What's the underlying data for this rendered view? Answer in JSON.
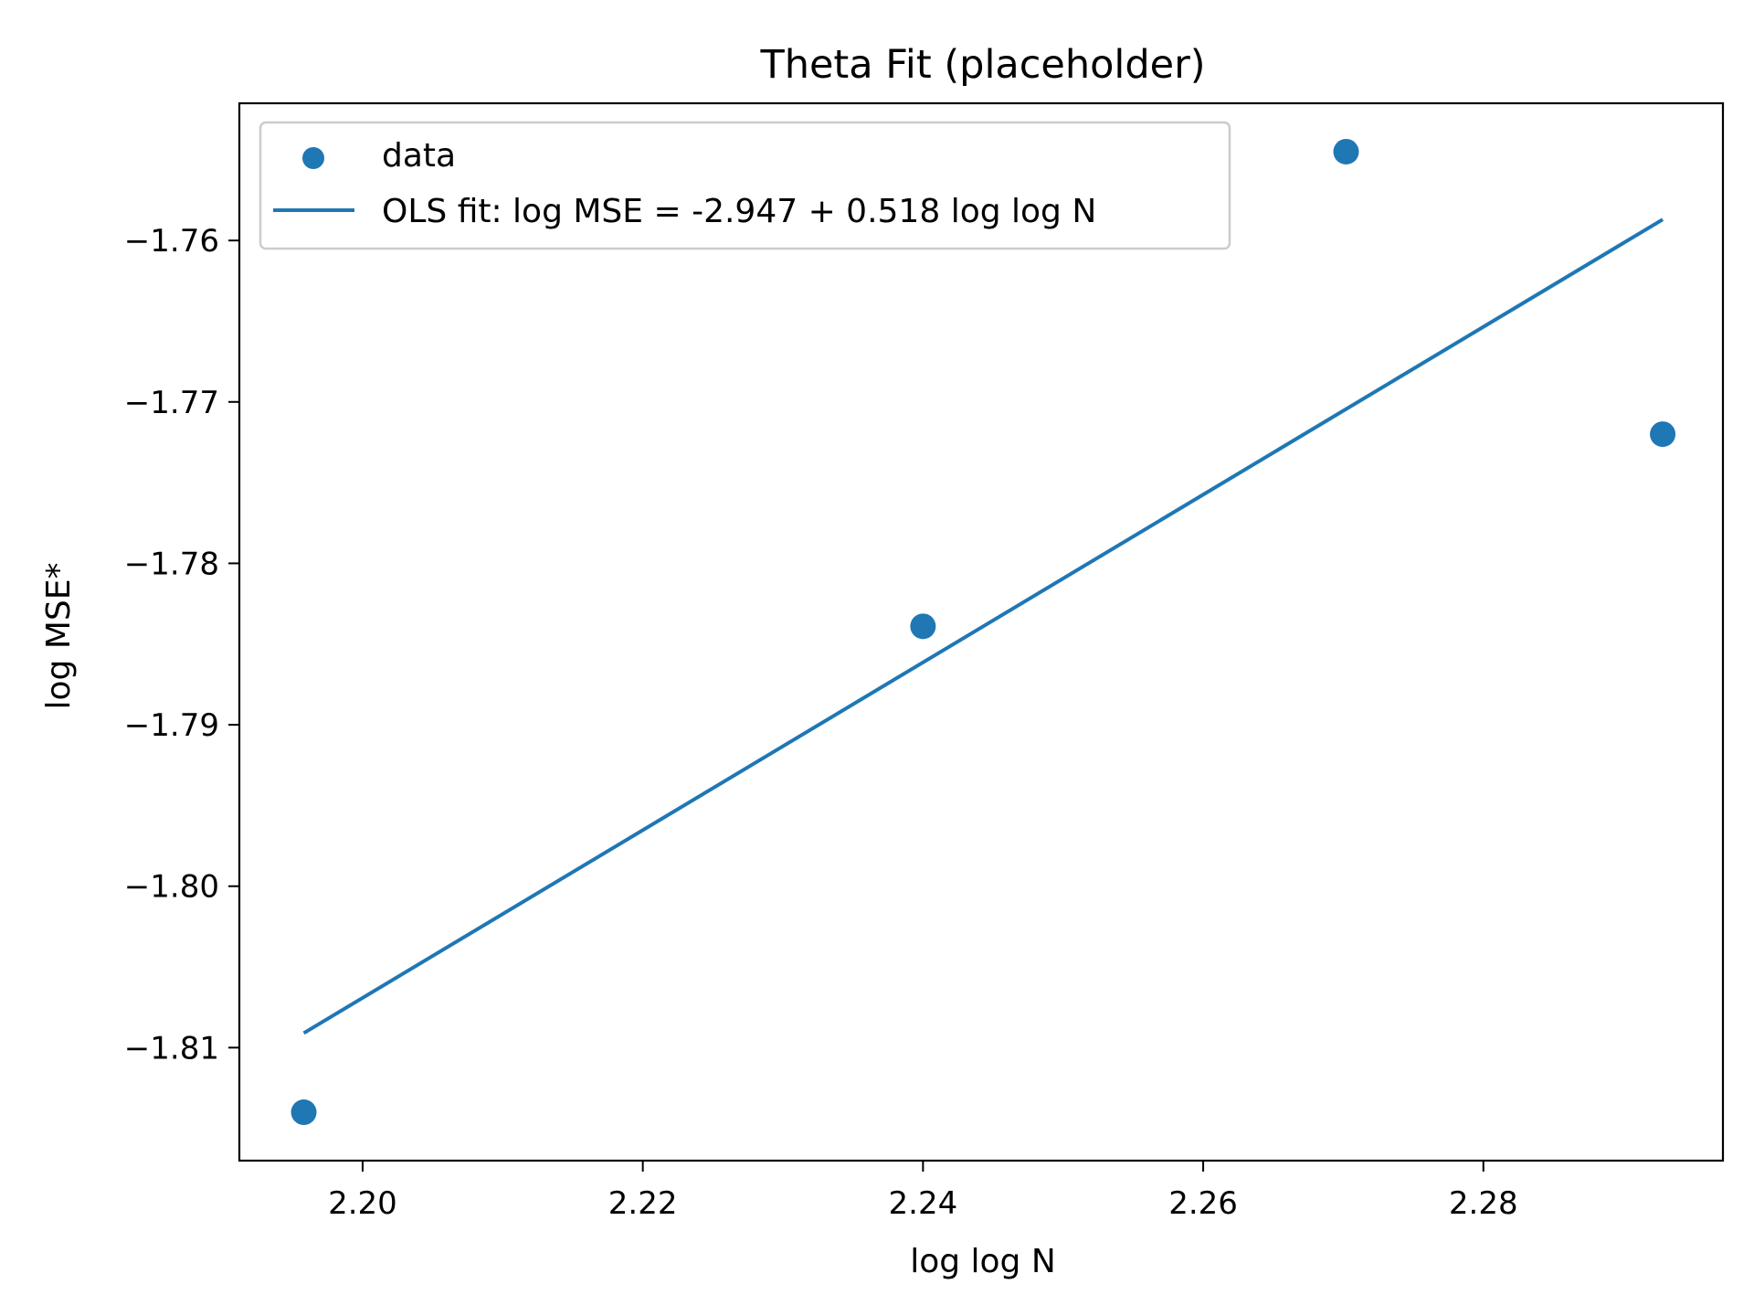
{
  "chart_data": {
    "type": "scatter",
    "title": "Theta Fit (placeholder)",
    "xlabel": "log log N",
    "ylabel": "log MSE*",
    "xlim": [
      2.1912,
      2.2971
    ],
    "ylim": [
      -1.817,
      -1.7515
    ],
    "xticks": [
      2.2,
      2.22,
      2.24,
      2.26,
      2.28
    ],
    "xtick_labels": [
      "2.20",
      "2.22",
      "2.24",
      "2.26",
      "2.28"
    ],
    "yticks": [
      -1.76,
      -1.77,
      -1.78,
      -1.79,
      -1.8,
      -1.81
    ],
    "ytick_labels": [
      "−1.76",
      "−1.77",
      "−1.78",
      "−1.79",
      "−1.80",
      "−1.81"
    ],
    "grid": false,
    "legend_position": "upper-left",
    "series": [
      {
        "name": "data",
        "type": "scatter",
        "color": "#1f77b4",
        "x": [
          2.1958,
          2.24,
          2.2702,
          2.2928
        ],
        "y": [
          -1.814,
          -1.7839,
          -1.7545,
          -1.772
        ]
      },
      {
        "name": "OLS fit: log MSE = -2.947 + 0.518 log log N",
        "type": "line",
        "color": "#1f77b4",
        "x": [
          2.1958,
          2.2928
        ],
        "y": [
          -1.8091,
          -1.7587
        ]
      }
    ]
  }
}
